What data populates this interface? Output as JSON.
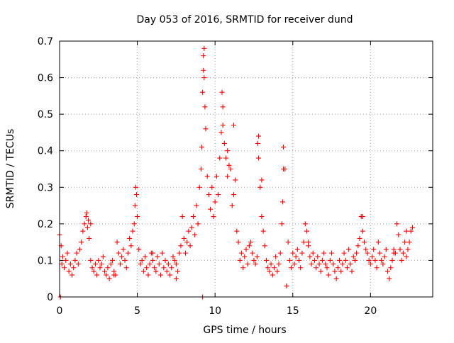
{
  "chart_data": {
    "type": "scatter",
    "title": "Day 053 of 2016, SRMTID for receiver dund",
    "xlabel": "GPS time / hours",
    "ylabel": "SRMTID / TECUs",
    "xlim": [
      0,
      24
    ],
    "ylim": [
      0,
      0.7
    ],
    "x_ticks": [
      0,
      5,
      10,
      15,
      20
    ],
    "x_tick_labels": [
      "0",
      "5",
      "10",
      "15",
      "20"
    ],
    "y_ticks": [
      0,
      0.1,
      0.2,
      0.3,
      0.4,
      0.5,
      0.6,
      0.7
    ],
    "y_tick_labels": [
      "0",
      "0.1",
      "0.2",
      "0.3",
      "0.4",
      "0.5",
      "0.6",
      "0.7"
    ],
    "grid": true,
    "marker": "+",
    "color": "#ff0000",
    "series": [
      {
        "name": "SRMTID",
        "x": [
          0.0,
          0.05,
          0.1,
          0.15,
          0.2,
          0.3,
          0.4,
          0.5,
          0.6,
          0.7,
          0.8,
          0.9,
          1.0,
          1.1,
          1.2,
          1.3,
          1.4,
          1.5,
          1.6,
          1.7,
          1.75,
          1.8,
          1.85,
          1.9,
          2.0,
          2.1,
          2.2,
          2.3,
          2.4,
          2.5,
          2.6,
          2.7,
          2.8,
          2.9,
          3.0,
          3.1,
          3.2,
          3.3,
          3.4,
          3.5,
          3.6,
          3.7,
          3.8,
          3.9,
          4.0,
          4.1,
          4.2,
          4.3,
          4.4,
          4.5,
          4.6,
          4.7,
          4.8,
          4.85,
          4.9,
          4.95,
          5.0,
          5.1,
          5.2,
          5.3,
          5.4,
          5.5,
          5.6,
          5.7,
          5.8,
          5.9,
          6.0,
          6.1,
          6.2,
          6.3,
          6.4,
          6.5,
          6.6,
          6.7,
          6.8,
          6.9,
          7.0,
          7.1,
          7.2,
          7.3,
          7.4,
          7.5,
          7.6,
          7.7,
          7.8,
          7.9,
          8.0,
          8.1,
          8.2,
          8.3,
          8.4,
          8.5,
          8.6,
          8.7,
          8.8,
          8.9,
          9.0,
          9.1,
          9.15,
          9.2,
          9.25,
          9.3,
          9.35,
          9.4,
          9.5,
          9.6,
          9.7,
          9.8,
          9.9,
          10.0,
          10.1,
          10.2,
          10.3,
          10.4,
          10.45,
          10.5,
          10.6,
          10.7,
          10.8,
          10.9,
          11.0,
          11.1,
          11.2,
          11.3,
          11.4,
          11.5,
          11.6,
          11.7,
          11.8,
          11.9,
          12.0,
          12.1,
          12.2,
          12.3,
          12.4,
          12.5,
          12.6,
          12.7,
          12.75,
          12.8,
          12.9,
          13.0,
          13.1,
          13.2,
          13.3,
          13.4,
          13.5,
          13.6,
          13.7,
          13.8,
          13.9,
          14.0,
          14.1,
          14.2,
          14.3,
          14.35,
          14.4,
          14.5,
          14.6,
          14.7,
          14.8,
          14.9,
          15.0,
          15.1,
          15.2,
          15.3,
          15.4,
          15.5,
          15.6,
          15.7,
          15.8,
          15.9,
          16.0,
          16.1,
          16.2,
          16.3,
          16.4,
          16.5,
          16.6,
          16.7,
          16.8,
          16.9,
          17.0,
          17.1,
          17.2,
          17.3,
          17.4,
          17.5,
          17.6,
          17.7,
          17.8,
          17.9,
          18.0,
          18.1,
          18.2,
          18.3,
          18.4,
          18.5,
          18.6,
          18.7,
          18.8,
          18.9,
          19.0,
          19.1,
          19.2,
          19.3,
          19.4,
          19.5,
          19.6,
          19.7,
          19.8,
          19.9,
          20.0,
          20.1,
          20.2,
          20.3,
          20.4,
          20.5,
          20.6,
          20.7,
          20.8,
          20.9,
          21.0,
          21.1,
          21.2,
          21.3,
          21.4,
          21.5,
          21.6,
          21.7,
          21.8,
          21.9,
          22.0,
          22.1,
          22.2,
          22.3,
          22.4,
          22.5,
          22.6,
          22.7,
          0.05,
          2.0,
          3.5,
          6.0,
          7.5,
          9.2,
          9.3,
          9.25,
          10.5,
          10.8,
          11.2,
          12.8,
          13.0,
          14.4,
          14.6,
          16.0,
          19.5,
          21.5,
          22.3
        ],
        "y": [
          0.17,
          0.0,
          0.14,
          0.09,
          0.11,
          0.08,
          0.1,
          0.12,
          0.07,
          0.09,
          0.06,
          0.08,
          0.1,
          0.12,
          0.09,
          0.13,
          0.15,
          0.18,
          0.2,
          0.22,
          0.23,
          0.19,
          0.21,
          0.16,
          0.1,
          0.08,
          0.07,
          0.09,
          0.06,
          0.1,
          0.08,
          0.09,
          0.11,
          0.07,
          0.06,
          0.08,
          0.05,
          0.09,
          0.1,
          0.07,
          0.06,
          0.15,
          0.12,
          0.09,
          0.11,
          0.13,
          0.1,
          0.08,
          0.12,
          0.16,
          0.14,
          0.18,
          0.2,
          0.25,
          0.3,
          0.28,
          0.22,
          0.13,
          0.09,
          0.1,
          0.07,
          0.11,
          0.08,
          0.06,
          0.09,
          0.12,
          0.1,
          0.08,
          0.07,
          0.11,
          0.09,
          0.06,
          0.12,
          0.08,
          0.1,
          0.07,
          0.09,
          0.06,
          0.08,
          0.11,
          0.1,
          0.09,
          0.07,
          0.12,
          0.14,
          0.22,
          0.16,
          0.12,
          0.15,
          0.18,
          0.14,
          0.19,
          0.22,
          0.17,
          0.25,
          0.2,
          0.3,
          0.35,
          0.41,
          0.56,
          0.62,
          0.68,
          0.52,
          0.46,
          0.33,
          0.28,
          0.24,
          0.3,
          0.22,
          0.26,
          0.33,
          0.28,
          0.38,
          0.45,
          0.56,
          0.52,
          0.42,
          0.38,
          0.4,
          0.36,
          0.35,
          0.25,
          0.28,
          0.32,
          0.18,
          0.15,
          0.1,
          0.12,
          0.08,
          0.11,
          0.13,
          0.09,
          0.14,
          0.15,
          0.12,
          0.1,
          0.09,
          0.11,
          0.42,
          0.38,
          0.3,
          0.22,
          0.18,
          0.14,
          0.1,
          0.08,
          0.07,
          0.09,
          0.06,
          0.08,
          0.11,
          0.07,
          0.09,
          0.12,
          0.2,
          0.26,
          0.41,
          0.35,
          0.03,
          0.15,
          0.1,
          0.08,
          0.12,
          0.09,
          0.11,
          0.13,
          0.1,
          0.08,
          0.12,
          0.15,
          0.2,
          0.18,
          0.14,
          0.11,
          0.09,
          0.12,
          0.1,
          0.08,
          0.11,
          0.09,
          0.07,
          0.1,
          0.12,
          0.09,
          0.08,
          0.06,
          0.1,
          0.12,
          0.09,
          0.07,
          0.05,
          0.08,
          0.1,
          0.07,
          0.09,
          0.12,
          0.1,
          0.08,
          0.13,
          0.09,
          0.07,
          0.11,
          0.1,
          0.12,
          0.14,
          0.16,
          0.22,
          0.18,
          0.15,
          0.13,
          0.12,
          0.1,
          0.09,
          0.11,
          0.13,
          0.1,
          0.08,
          0.15,
          0.12,
          0.1,
          0.09,
          0.11,
          0.13,
          0.07,
          0.05,
          0.08,
          0.1,
          0.13,
          0.12,
          0.2,
          0.17,
          0.13,
          0.1,
          0.12,
          0.15,
          0.11,
          0.13,
          0.15,
          0.18,
          0.19,
          0.0,
          0.2,
          0.06,
          0.12,
          0.05,
          0.0,
          0.6,
          0.66,
          0.47,
          0.33,
          0.47,
          0.44,
          0.32,
          0.35,
          0.03,
          0.15,
          0.22,
          0.12,
          0.18
        ]
      }
    ]
  }
}
